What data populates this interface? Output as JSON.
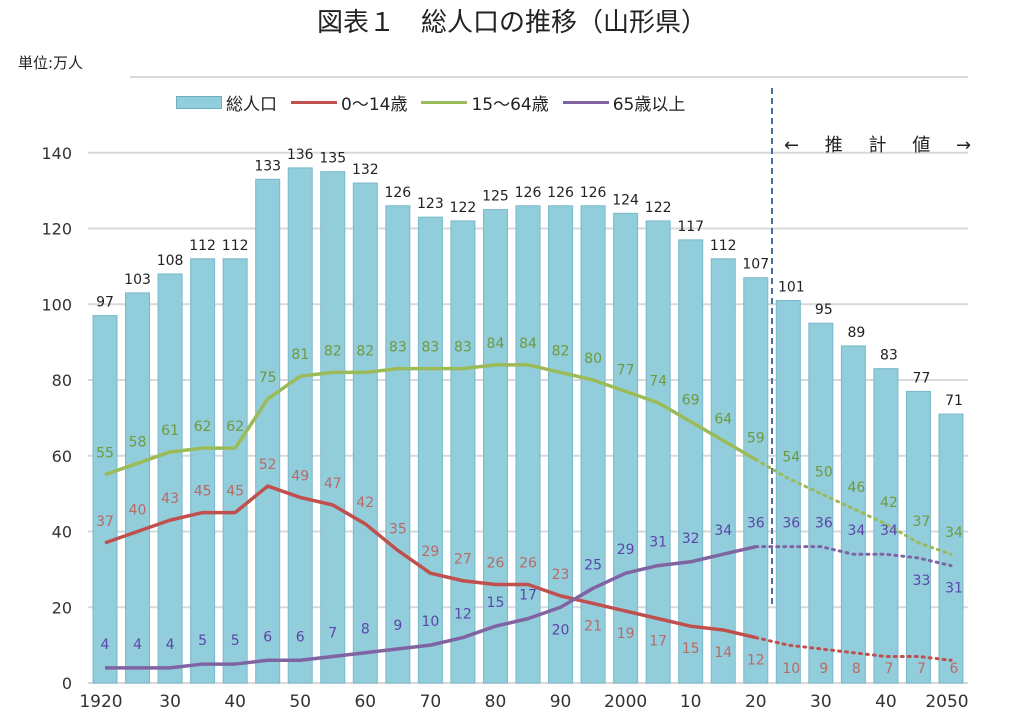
{
  "title": "図表１　総人口の推移（山形県）",
  "unit_label": "単位:万人",
  "projection_label": "← 推 計 値 →",
  "chart_data": {
    "type": "bar+line",
    "categories": [
      1920,
      1925,
      1930,
      1935,
      1940,
      1945,
      1950,
      1955,
      1960,
      1965,
      1970,
      1975,
      1980,
      1985,
      1990,
      1995,
      2000,
      2005,
      2010,
      2015,
      2020,
      2025,
      2030,
      2035,
      2040,
      2045,
      2050
    ],
    "x_tick_labels": [
      "1920",
      "30",
      "40",
      "50",
      "60",
      "70",
      "80",
      "90",
      "2000",
      "10",
      "20",
      "30",
      "40",
      "2050"
    ],
    "ylim": [
      0,
      160
    ],
    "y_ticks": [
      0,
      20,
      40,
      60,
      80,
      100,
      120,
      140
    ],
    "grid": true,
    "legend_position": "top",
    "projection_start": 2025,
    "series": [
      {
        "name": "総人口",
        "type": "bar",
        "color": "#92cddc",
        "values": [
          97,
          103,
          108,
          112,
          112,
          133,
          136,
          135,
          132,
          126,
          123,
          122,
          125,
          126,
          126,
          126,
          124,
          122,
          117,
          112,
          107,
          101,
          95,
          89,
          83,
          77,
          71
        ]
      },
      {
        "name": "0～14歳",
        "type": "line",
        "color": "#c0504d",
        "label_color": "#b86a66",
        "values": [
          37,
          40,
          43,
          45,
          45,
          52,
          49,
          47,
          42,
          35,
          29,
          27,
          26,
          26,
          23,
          21,
          19,
          17,
          15,
          14,
          12,
          10,
          9,
          8,
          7,
          7,
          6
        ]
      },
      {
        "name": "15～64歳",
        "type": "line",
        "color": "#9bbb59",
        "label_color": "#6e9a3e",
        "values": [
          55,
          58,
          61,
          62,
          62,
          75,
          81,
          82,
          82,
          83,
          83,
          83,
          84,
          84,
          82,
          80,
          77,
          74,
          69,
          64,
          59,
          54,
          50,
          46,
          42,
          37,
          34
        ]
      },
      {
        "name": "65歳以上",
        "type": "line",
        "color": "#8064a2",
        "label_color": "#5a46a8",
        "values": [
          4,
          4,
          4,
          5,
          5,
          6,
          6,
          7,
          8,
          9,
          10,
          12,
          15,
          17,
          20,
          25,
          29,
          31,
          32,
          34,
          36,
          36,
          36,
          34,
          34,
          33,
          31
        ]
      }
    ]
  }
}
